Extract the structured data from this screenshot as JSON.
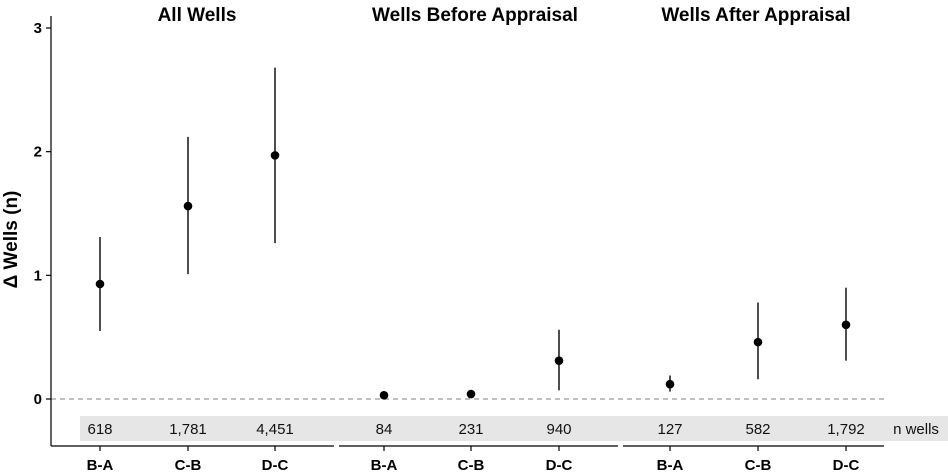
{
  "chart_data": {
    "type": "scatter",
    "ylabel": "Δ Wells (n)",
    "ylim": [
      0,
      3
    ],
    "yticks": [
      0,
      1,
      2,
      3
    ],
    "reference_line": 0,
    "n_label": "n wells",
    "categories": [
      "B-A",
      "C-B",
      "D-C"
    ],
    "panels": [
      {
        "title": "All Wells",
        "points": [
          {
            "category": "B-A",
            "y": 0.93,
            "lower": 0.55,
            "upper": 1.31,
            "n": "618"
          },
          {
            "category": "C-B",
            "y": 1.56,
            "lower": 1.01,
            "upper": 2.12,
            "n": "1,781"
          },
          {
            "category": "D-C",
            "y": 1.97,
            "lower": 1.26,
            "upper": 2.68,
            "n": "4,451"
          }
        ]
      },
      {
        "title": "Wells Before Appraisal",
        "points": [
          {
            "category": "B-A",
            "y": 0.03,
            "lower": null,
            "upper": null,
            "n": "84"
          },
          {
            "category": "C-B",
            "y": 0.04,
            "lower": null,
            "upper": null,
            "n": "231"
          },
          {
            "category": "D-C",
            "y": 0.31,
            "lower": 0.07,
            "upper": 0.56,
            "n": "940"
          }
        ]
      },
      {
        "title": "Wells After Appraisal",
        "points": [
          {
            "category": "B-A",
            "y": 0.12,
            "lower": 0.06,
            "upper": 0.19,
            "n": "127"
          },
          {
            "category": "C-B",
            "y": 0.46,
            "lower": 0.16,
            "upper": 0.78,
            "n": "582"
          },
          {
            "category": "D-C",
            "y": 0.6,
            "lower": 0.31,
            "upper": 0.9,
            "n": "1,792"
          }
        ]
      }
    ]
  }
}
